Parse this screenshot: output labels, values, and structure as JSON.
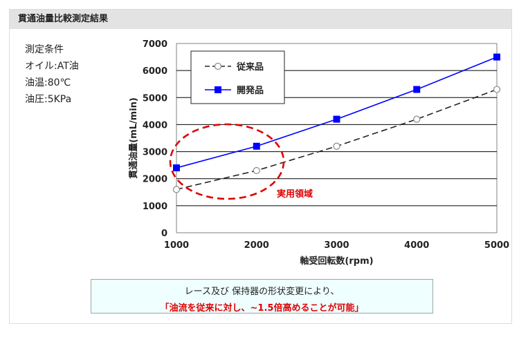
{
  "header": {
    "title": "貫通油量比較測定結果"
  },
  "conditions": {
    "heading": "測定条件",
    "items": [
      "オイル:AT油",
      "油温:80℃",
      "油圧:5KPa"
    ]
  },
  "note": {
    "line1": "レース及び 保持器の形状変更により、",
    "line2": "「油流を従来に対し、~1.5倍高めることが可能」"
  },
  "colors": {
    "new": "#0000ff",
    "old": "#222222",
    "highlight": "#e00000"
  },
  "chart_data": {
    "type": "line",
    "x": [
      1000,
      2000,
      3000,
      4000,
      5000
    ],
    "xticks": [
      "1000",
      "2000",
      "3000",
      "4000",
      "5000"
    ],
    "yticks": [
      "0",
      "1000",
      "2000",
      "3000",
      "4000",
      "5000",
      "6000",
      "7000"
    ],
    "xlim": [
      1000,
      5000
    ],
    "ylim": [
      0,
      7000
    ],
    "xlabel": "軸受回転数(rpm)",
    "ylabel": "貫通油量(mL/min)",
    "grid": true,
    "legend_position": "top-left",
    "series": [
      {
        "name": "従来品",
        "values": [
          1600,
          2300,
          3200,
          4200,
          5300
        ],
        "style": "dashed",
        "marker": "open-circle",
        "color": "#222222"
      },
      {
        "name": "開発品",
        "values": [
          2400,
          3200,
          4200,
          5300,
          6500
        ],
        "style": "solid",
        "marker": "filled-square",
        "color": "#0000ff"
      }
    ],
    "annotation": {
      "text": "実用領域",
      "shape": "dashed-ellipse",
      "color": "#e00000"
    }
  }
}
